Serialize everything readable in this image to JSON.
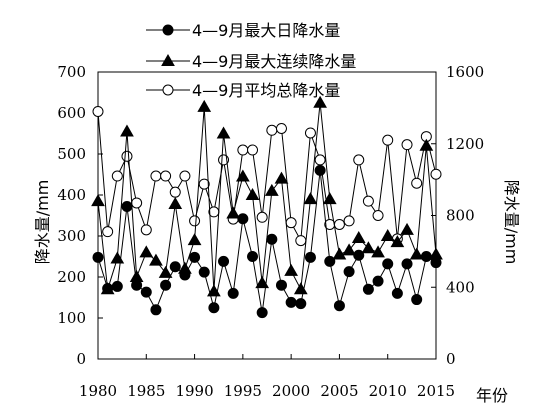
{
  "chart_data": {
    "type": "line",
    "x": [
      1980,
      1981,
      1982,
      1983,
      1984,
      1985,
      1986,
      1987,
      1988,
      1989,
      1990,
      1991,
      1992,
      1993,
      1994,
      1995,
      1996,
      1997,
      1998,
      1999,
      2000,
      2001,
      2002,
      2003,
      2004,
      2005,
      2006,
      2007,
      2008,
      2009,
      2010,
      2011,
      2012,
      2013,
      2014,
      2015
    ],
    "xticks": [
      "1980",
      "1985",
      "1990",
      "1995",
      "2000",
      "2005",
      "2010",
      "2015"
    ],
    "xlabel": "年份",
    "xlim": [
      1980,
      2015
    ],
    "ylabel_left": "降水量/mm",
    "ylabel_right": "降水量/mm",
    "ylim_left": [
      0,
      700
    ],
    "ylim_right": [
      0,
      1600
    ],
    "yticks_left": [
      "0",
      "100",
      "200",
      "300",
      "400",
      "500",
      "600",
      "700"
    ],
    "yticks_right": [
      "0",
      "400",
      "800",
      "1200",
      "1600"
    ],
    "grid": false,
    "legend_position": "top",
    "series": [
      {
        "name": "4—9月最大日降水量",
        "axis": "left",
        "marker": "filled-circle",
        "values": [
          248,
          172,
          177,
          372,
          180,
          163,
          120,
          180,
          225,
          205,
          248,
          212,
          125,
          238,
          160,
          342,
          250,
          113,
          292,
          180,
          138,
          135,
          248,
          460,
          238,
          130,
          213,
          253,
          170,
          190,
          232,
          160,
          232,
          145,
          250,
          235
        ]
      },
      {
        "name": "4—9月最大连续降水量",
        "axis": "left",
        "marker": "filled-triangle",
        "values": [
          385,
          170,
          245,
          555,
          200,
          260,
          240,
          210,
          378,
          220,
          290,
          615,
          165,
          550,
          355,
          445,
          400,
          185,
          410,
          440,
          215,
          170,
          390,
          625,
          390,
          255,
          265,
          295,
          270,
          260,
          300,
          285,
          315,
          255,
          520,
          255
        ]
      },
      {
        "name": "4—9月平均总降水量",
        "axis": "right",
        "marker": "open-circle",
        "values": [
          1380,
          710,
          1020,
          1130,
          870,
          720,
          1020,
          1020,
          930,
          1020,
          770,
          975,
          820,
          1110,
          780,
          1165,
          1165,
          790,
          1275,
          1285,
          760,
          660,
          1260,
          1110,
          750,
          750,
          770,
          1110,
          880,
          800,
          1220,
          670,
          1195,
          980,
          1240,
          1030
        ]
      }
    ]
  }
}
